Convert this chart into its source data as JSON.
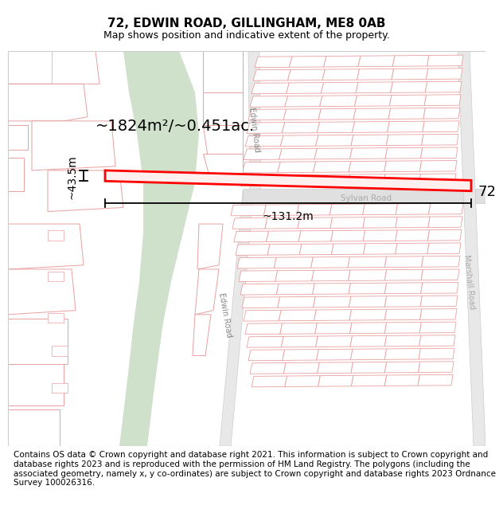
{
  "title_line1": "72, EDWIN ROAD, GILLINGHAM, ME8 0AB",
  "title_line2": "Map shows position and indicative extent of the property.",
  "footer_text": "Contains OS data © Crown copyright and database right 2021. This information is subject to Crown copyright and database rights 2023 and is reproduced with the permission of HM Land Registry. The polygons (including the associated geometry, namely x, y co-ordinates) are subject to Crown copyright and database rights 2023 Ordnance Survey 100026316.",
  "area_label": "~1824m²/~0.451ac.",
  "width_label": "~131.2m",
  "height_label": "~43.5m",
  "plot_number": "72",
  "map_bg": "#f2f2f2",
  "road_outline": "#e8a0a0",
  "plot_outline": "#ff0000",
  "green_area": "#cfe0cb",
  "block_fill": "#e8e8e8",
  "block_outline": "#e8a0a0",
  "title_fontsize": 11,
  "subtitle_fontsize": 9,
  "footer_fontsize": 7.5
}
